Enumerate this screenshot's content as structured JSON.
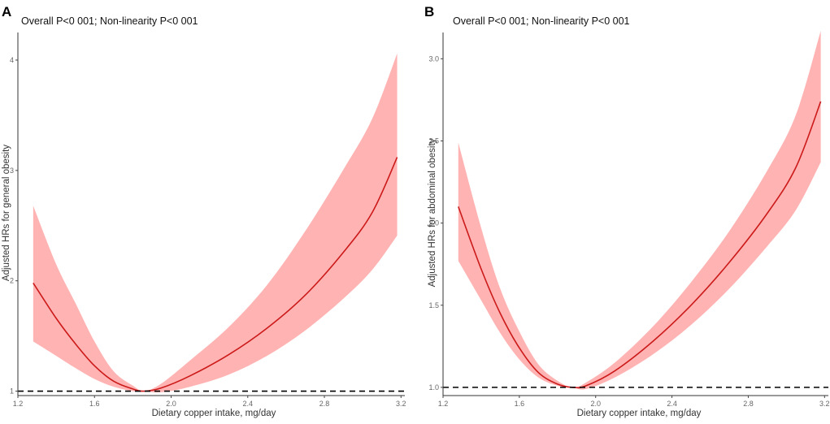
{
  "chart_data": [
    {
      "type": "line",
      "panel": "A",
      "title": "Overall P<0 001; Non-linearity P<0 001",
      "xlabel": "Dietary copper intake, mg/day",
      "ylabel": "Adjusted HRs for general obesity",
      "xlim": [
        1.2,
        3.22
      ],
      "ylim": [
        0.96,
        4.25
      ],
      "xticks": [
        1.2,
        1.6,
        2.0,
        2.4,
        2.8,
        3.2
      ],
      "xtick_labels": [
        "1.2",
        "1.6",
        "2.0",
        "2.4",
        "2.8",
        "3.2"
      ],
      "yticks": [
        1,
        2,
        3,
        4
      ],
      "ytick_labels": [
        "1",
        "2",
        "3",
        "4"
      ],
      "reference_line": 1,
      "series": [
        {
          "name": "Adjusted HR",
          "x": [
            1.28,
            1.4,
            1.5,
            1.6,
            1.7,
            1.8,
            1.86,
            1.95,
            2.1,
            2.3,
            2.5,
            2.7,
            2.9,
            3.05,
            3.18
          ],
          "y": [
            1.98,
            1.66,
            1.43,
            1.23,
            1.09,
            1.02,
            1.0,
            1.03,
            1.14,
            1.33,
            1.57,
            1.87,
            2.26,
            2.62,
            3.12
          ],
          "lower": [
            1.45,
            1.32,
            1.21,
            1.11,
            1.04,
            1.0,
            1.0,
            0.99,
            1.04,
            1.15,
            1.32,
            1.55,
            1.84,
            2.1,
            2.41
          ],
          "upper": [
            2.68,
            2.15,
            1.8,
            1.45,
            1.18,
            1.05,
            1.0,
            1.07,
            1.28,
            1.58,
            1.96,
            2.45,
            3.01,
            3.47,
            4.06
          ]
        }
      ]
    },
    {
      "type": "line",
      "panel": "B",
      "title": "Overall P<0 001; Non-linearity P<0 001",
      "xlabel": "Dietary copper intake, mg/day",
      "ylabel": "Adjusted HRs for abdominal obesity",
      "xlim": [
        1.2,
        3.22
      ],
      "ylim": [
        0.95,
        3.16
      ],
      "xticks": [
        1.2,
        1.6,
        2.0,
        2.4,
        2.8,
        3.2
      ],
      "xtick_labels": [
        "1.2",
        "1.6",
        "2.0",
        "2.4",
        "2.8",
        "3.2"
      ],
      "yticks": [
        1.0,
        1.5,
        2.0,
        2.5,
        3.0
      ],
      "ytick_labels": [
        "1.0",
        "1.5",
        "2.0",
        "2.5",
        "3.0"
      ],
      "reference_line": 1.0,
      "series": [
        {
          "name": "Adjusted HR",
          "x": [
            1.28,
            1.4,
            1.5,
            1.6,
            1.7,
            1.8,
            1.88,
            1.95,
            2.1,
            2.3,
            2.5,
            2.7,
            2.9,
            3.05,
            3.18
          ],
          "y": [
            2.1,
            1.72,
            1.45,
            1.24,
            1.09,
            1.02,
            1.0,
            1.01,
            1.1,
            1.28,
            1.5,
            1.76,
            2.06,
            2.34,
            2.74
          ],
          "lower": [
            1.77,
            1.53,
            1.33,
            1.17,
            1.06,
            1.01,
            1.0,
            0.99,
            1.06,
            1.2,
            1.38,
            1.6,
            1.86,
            2.08,
            2.37
          ],
          "upper": [
            2.49,
            1.97,
            1.6,
            1.34,
            1.14,
            1.04,
            1.0,
            1.03,
            1.15,
            1.37,
            1.64,
            1.95,
            2.32,
            2.66,
            3.17
          ]
        }
      ]
    }
  ]
}
